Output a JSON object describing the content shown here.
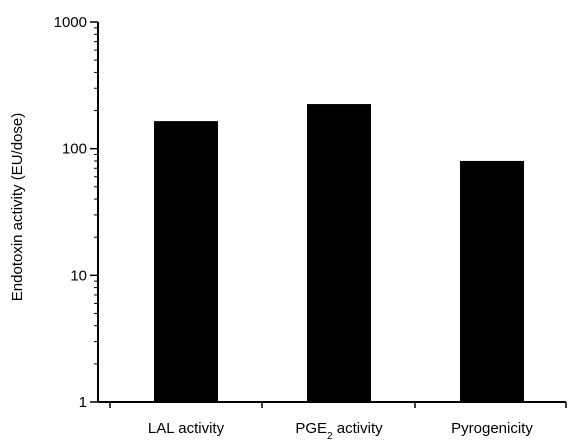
{
  "chart_data": {
    "type": "bar",
    "title": "",
    "xlabel": "",
    "ylabel": "Endotoxin activity (EU/dose)",
    "yscale": "log",
    "ylim": [
      1,
      1000
    ],
    "yticks": [
      1,
      10,
      100,
      1000
    ],
    "ytick_labels": [
      "1",
      "10",
      "100",
      "1000"
    ],
    "categories": [
      "LAL activity",
      "PGE2 activity",
      "Pyrogenicity"
    ],
    "category_labels": [
      {
        "text": "LAL activity",
        "sub": "",
        "after": ""
      },
      {
        "text": "PGE",
        "sub": "2",
        "after": " activity"
      },
      {
        "text": "Pyrogenicity",
        "sub": "",
        "after": ""
      }
    ],
    "values": [
      165,
      225,
      80
    ],
    "bar_color": "#000000",
    "grid": false,
    "legend": "none"
  }
}
